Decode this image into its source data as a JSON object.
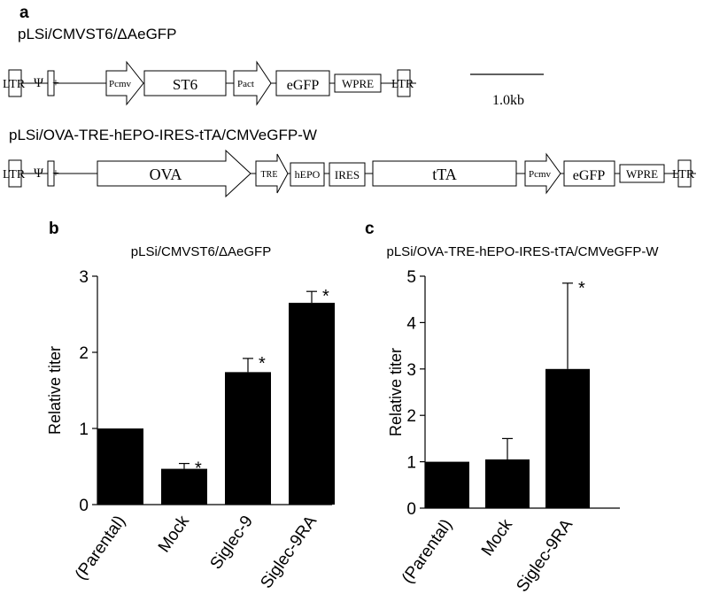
{
  "panel_a": {
    "letter": "a",
    "construct1": {
      "title": "pLSi/CMVST6/ΔAeGFP",
      "ltr_left": "LTR",
      "psi": "Ψ",
      "plus": "+",
      "pcmv": "Pcmv",
      "st6": "ST6",
      "pact": "Pact",
      "egfp": "eGFP",
      "wpre": "WPRE",
      "ltr_right": "LTR"
    },
    "scale_bar": {
      "label": "1.0kb"
    },
    "construct2": {
      "title": "pLSi/OVA-TRE-hEPO-IRES-tTA/CMVeGFP-W",
      "ltr_left": "LTR",
      "psi": "Ψ",
      "plus": "+",
      "ova": "OVA",
      "tre": "TRE",
      "hepo": "hEPO",
      "ires": "IRES",
      "tta": "tTA",
      "pcmv": "Pcmv",
      "egfp": "eGFP",
      "wpre": "WPRE",
      "ltr_right": "LTR"
    }
  },
  "chart_data": [
    {
      "type": "bar",
      "panel": "b",
      "title": "pLSi/CMVST6/ΔAeGFP",
      "ylabel": "Relative titer",
      "xlabel": "",
      "ylim": [
        0,
        3
      ],
      "yticks": [
        "0",
        "1",
        "2",
        "3"
      ],
      "categories": [
        "(Parental)",
        "Mock",
        "Siglec-9",
        "Siglec-9RA"
      ],
      "values": [
        1.0,
        0.47,
        1.74,
        2.65
      ],
      "errors": [
        0.0,
        0.07,
        0.18,
        0.15
      ],
      "significance": [
        "",
        "*",
        "*",
        "*"
      ],
      "bar_color": "#000000"
    },
    {
      "type": "bar",
      "panel": "c",
      "title": "pLSi/OVA-TRE-hEPO-IRES-tTA/CMVeGFP-W",
      "ylabel": "Relative titer",
      "xlabel": "",
      "ylim": [
        0,
        5
      ],
      "yticks": [
        "0",
        "1",
        "2",
        "3",
        "4",
        "5"
      ],
      "categories": [
        "(Parental)",
        "Mock",
        "Siglec-9RA"
      ],
      "values": [
        1.0,
        1.05,
        3.0
      ],
      "errors": [
        0.0,
        0.45,
        1.85
      ],
      "significance": [
        "",
        "",
        "*"
      ],
      "bar_color": "#000000"
    }
  ]
}
